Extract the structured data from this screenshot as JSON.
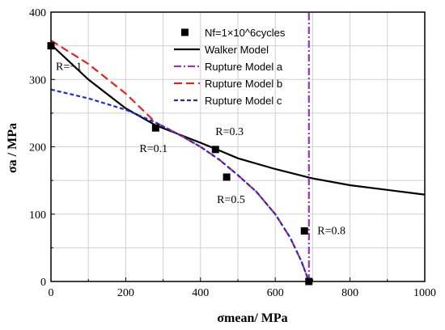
{
  "chart_data": {
    "type": "line",
    "xlabel": "σmean/ MPa",
    "ylabel": "σa / MPa",
    "xlim": [
      0,
      1000
    ],
    "ylim": [
      0,
      400
    ],
    "x_ticks": [
      0,
      200,
      400,
      600,
      800,
      1000
    ],
    "y_ticks": [
      0,
      100,
      200,
      300,
      400
    ],
    "grid": true,
    "legend_position": "top-right",
    "points": {
      "name": "Nf=1×10^6cycles",
      "x": [
        0,
        280,
        440,
        470,
        678,
        690
      ],
      "y": [
        350,
        228,
        196,
        155,
        75,
        0
      ],
      "labels": [
        "R=−1",
        "R=0.1",
        "R=0.3",
        "R=0.5",
        "R=0.8",
        ""
      ]
    },
    "series": [
      {
        "name": "Walker Model",
        "style": "solid",
        "color": "#000000",
        "x": [
          0,
          100,
          200,
          280,
          400,
          440,
          500,
          600,
          700,
          800,
          900,
          1000
        ],
        "y": [
          352,
          300,
          257,
          232,
          206,
          197,
          183,
          167,
          153,
          143,
          136,
          129
        ]
      },
      {
        "name": "Rupture Model a",
        "style": "dashdot",
        "color": "#9b30d0",
        "x": [
          690,
          690
        ],
        "y": [
          0,
          400
        ]
      },
      {
        "name": "Rupture Model b",
        "style": "dashed",
        "color": "#e8231f",
        "x": [
          0,
          100,
          200,
          280,
          350,
          400,
          450,
          500,
          550,
          600,
          640,
          670,
          690
        ],
        "y": [
          358,
          323,
          279,
          236,
          216,
          200,
          181,
          158,
          133,
          100,
          65,
          30,
          0
        ]
      },
      {
        "name": "Rupture Model c",
        "style": "dotted",
        "color": "#1c2fd6",
        "x": [
          0,
          100,
          200,
          280,
          350,
          400,
          450,
          500,
          550,
          600,
          640,
          670,
          690
        ],
        "y": [
          285,
          272,
          255,
          236,
          216,
          200,
          181,
          158,
          133,
          100,
          65,
          30,
          0
        ]
      }
    ]
  }
}
